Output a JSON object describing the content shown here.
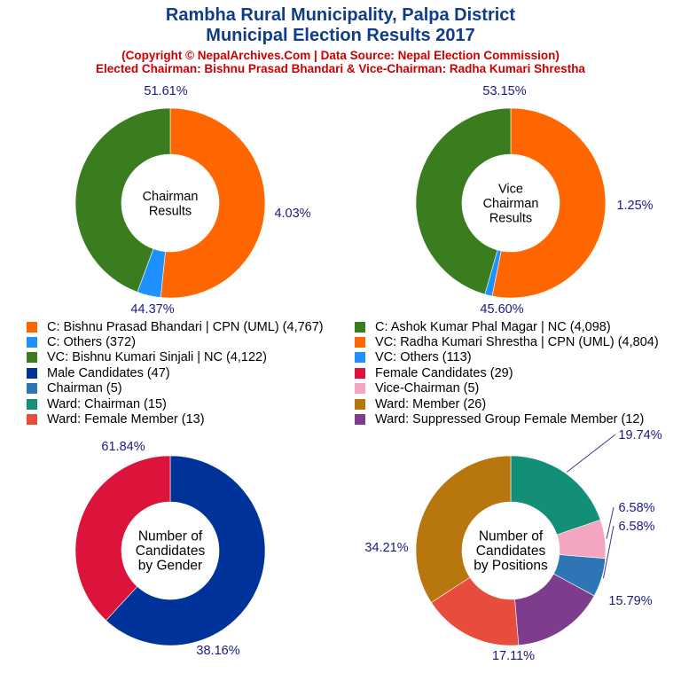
{
  "header": {
    "title_line1": "Rambha Rural Municipality, Palpa District",
    "title_line2": "Municipal Election Results 2017",
    "subtitle_line1": "(Copyright © NepalArchives.Com | Data Source: Nepal Election Commission)",
    "subtitle_line2": "Elected Chairman: Bishnu Prasad Bhandari & Vice-Chairman: Radha Kumari Shrestha"
  },
  "legend": [
    {
      "label": "C: Bishnu Prasad Bhandari | CPN (UML) (4,767)",
      "color": "#ff6600"
    },
    {
      "label": "C: Ashok Kumar Phal Magar | NC (4,098)",
      "color": "#3a7d1e"
    },
    {
      "label": "C: Others (372)",
      "color": "#1e90ff"
    },
    {
      "label": "VC: Radha Kumari Shrestha | CPN (UML) (4,804)",
      "color": "#ff6600"
    },
    {
      "label": "VC: Bishnu Kumari Sinjali | NC (4,122)",
      "color": "#3a7d1e"
    },
    {
      "label": "VC: Others (113)",
      "color": "#1e90ff"
    },
    {
      "label": "Male Candidates (47)",
      "color": "#003399"
    },
    {
      "label": "Female Candidates (29)",
      "color": "#dc143c"
    },
    {
      "label": "Chairman (5)",
      "color": "#2e75b6"
    },
    {
      "label": "Vice-Chairman (5)",
      "color": "#f4a6c0"
    },
    {
      "label": "Ward: Chairman (15)",
      "color": "#148f77"
    },
    {
      "label": "Ward: Member (26)",
      "color": "#b8760e"
    },
    {
      "label": "Ward: Female Member (13)",
      "color": "#e74c3c"
    },
    {
      "label": "Ward: Suppressed Group Female Member (12)",
      "color": "#7d3c8c"
    }
  ],
  "chart_data": [
    {
      "type": "pie",
      "center_label": [
        "Chairman",
        "Results"
      ],
      "slices": [
        {
          "name": "C: Bishnu Prasad Bhandari | CPN (UML)",
          "value": 4767,
          "pct_label": "51.61%",
          "color": "#ff6600"
        },
        {
          "name": "C: Others",
          "value": 372,
          "pct_label": "4.03%",
          "color": "#1e90ff"
        },
        {
          "name": "C: Ashok Kumar Phal Magar | NC",
          "value": 4098,
          "pct_label": "44.37%",
          "color": "#3a7d1e"
        }
      ]
    },
    {
      "type": "pie",
      "center_label": [
        "Vice",
        "Chairman",
        "Results"
      ],
      "slices": [
        {
          "name": "VC: Radha Kumari Shrestha | CPN (UML)",
          "value": 4804,
          "pct_label": "53.15%",
          "color": "#ff6600"
        },
        {
          "name": "VC: Others",
          "value": 113,
          "pct_label": "1.25%",
          "color": "#1e90ff"
        },
        {
          "name": "VC: Bishnu Kumari Sinjali | NC",
          "value": 4122,
          "pct_label": "45.60%",
          "color": "#3a7d1e"
        }
      ]
    },
    {
      "type": "pie",
      "center_label": [
        "Number of",
        "Candidates",
        "by Gender"
      ],
      "slices": [
        {
          "name": "Male Candidates",
          "value": 47,
          "pct_label": "61.84%",
          "color": "#003399"
        },
        {
          "name": "Female Candidates",
          "value": 29,
          "pct_label": "38.16%",
          "color": "#dc143c"
        }
      ]
    },
    {
      "type": "pie",
      "center_label": [
        "Number of",
        "Candidates",
        "by Positions"
      ],
      "slices": [
        {
          "name": "Ward: Chairman",
          "value": 15,
          "pct_label": "19.74%",
          "color": "#148f77"
        },
        {
          "name": "Vice-Chairman",
          "value": 5,
          "pct_label": "6.58%",
          "color": "#f4a6c0"
        },
        {
          "name": "Chairman",
          "value": 5,
          "pct_label": "6.58%",
          "color": "#2e75b6"
        },
        {
          "name": "Ward: Suppressed Group Female Member",
          "value": 12,
          "pct_label": "15.79%",
          "color": "#7d3c8c"
        },
        {
          "name": "Ward: Female Member",
          "value": 13,
          "pct_label": "17.11%",
          "color": "#e74c3c"
        },
        {
          "name": "Ward: Member",
          "value": 26,
          "pct_label": "34.21%",
          "color": "#b8760e"
        }
      ]
    }
  ]
}
